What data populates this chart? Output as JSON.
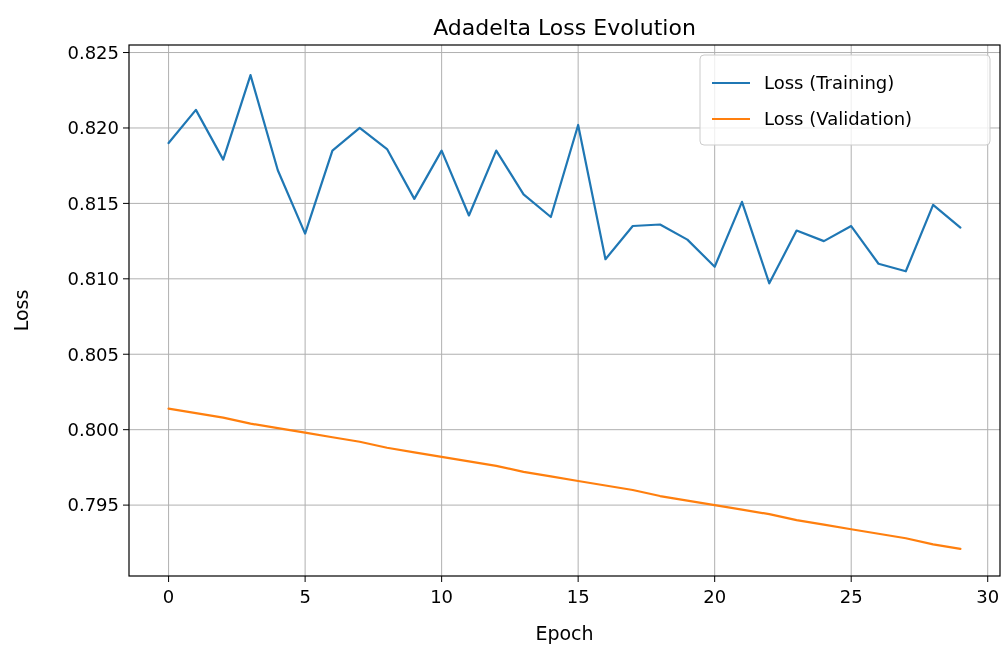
{
  "chart_data": {
    "type": "line",
    "title": "Adadelta Loss Evolution",
    "xlabel": "Epoch",
    "ylabel": "Loss",
    "x": [
      0,
      1,
      2,
      3,
      4,
      5,
      6,
      7,
      8,
      9,
      10,
      11,
      12,
      13,
      14,
      15,
      16,
      17,
      18,
      19,
      20,
      21,
      22,
      23,
      24,
      25,
      26,
      27,
      28,
      29
    ],
    "series": [
      {
        "name": "Loss (Training)",
        "color": "#1f77b4",
        "values": [
          0.819,
          0.8212,
          0.8179,
          0.8235,
          0.8172,
          0.813,
          0.8185,
          0.82,
          0.8186,
          0.8153,
          0.8185,
          0.8142,
          0.8185,
          0.8156,
          0.8141,
          0.8202,
          0.8113,
          0.8135,
          0.8136,
          0.8126,
          0.8108,
          0.8151,
          0.8097,
          0.8132,
          0.8125,
          0.8135,
          0.811,
          0.8105,
          0.8149,
          0.8134
        ]
      },
      {
        "name": "Loss (Validation)",
        "color": "#ff7f0e",
        "values": [
          0.8014,
          0.8011,
          0.8008,
          0.8004,
          0.8001,
          0.7998,
          0.7995,
          0.7992,
          0.7988,
          0.7985,
          0.7982,
          0.7979,
          0.7976,
          0.7972,
          0.7969,
          0.7966,
          0.7963,
          0.796,
          0.7956,
          0.7953,
          0.795,
          0.7947,
          0.7944,
          0.794,
          0.7937,
          0.7934,
          0.7931,
          0.7928,
          0.7924,
          0.7921
        ]
      }
    ],
    "xlim": [
      -1.45,
      30.45
    ],
    "xticks": [
      0,
      5,
      10,
      15,
      20,
      25,
      30
    ],
    "ylim": [
      0.7903,
      0.8255
    ],
    "yticks": [
      {
        "value": 0.795,
        "label": "0.795"
      },
      {
        "value": 0.8,
        "label": "0.800"
      },
      {
        "value": 0.805,
        "label": "0.805"
      },
      {
        "value": 0.81,
        "label": "0.810"
      },
      {
        "value": 0.815,
        "label": "0.815"
      },
      {
        "value": 0.82,
        "label": "0.820"
      },
      {
        "value": 0.825,
        "label": "0.825"
      }
    ],
    "grid": true,
    "legend": "top right",
    "line_style": "solid",
    "marker": "none"
  }
}
